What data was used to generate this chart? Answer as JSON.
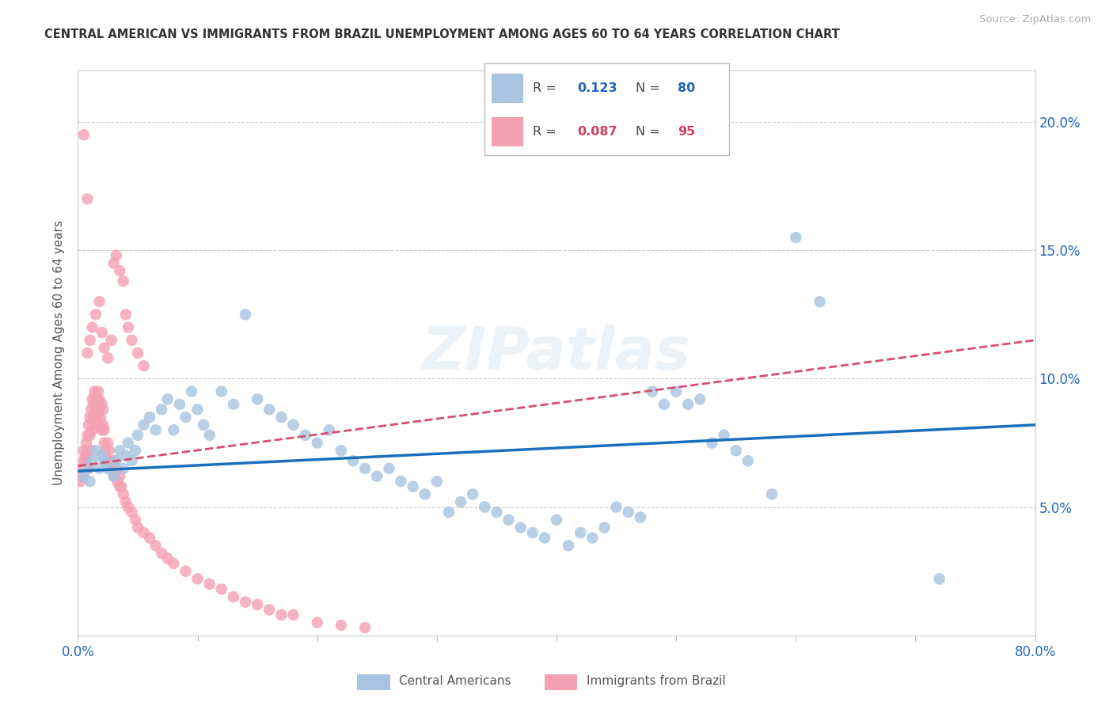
{
  "title": "CENTRAL AMERICAN VS IMMIGRANTS FROM BRAZIL UNEMPLOYMENT AMONG AGES 60 TO 64 YEARS CORRELATION CHART",
  "source": "Source: ZipAtlas.com",
  "ylabel": "Unemployment Among Ages 60 to 64 years",
  "xlim": [
    0.0,
    0.8
  ],
  "ylim": [
    0.0,
    0.22
  ],
  "x_ticks": [
    0.0,
    0.1,
    0.2,
    0.3,
    0.4,
    0.5,
    0.6,
    0.7,
    0.8
  ],
  "x_tick_labels": [
    "0.0%",
    "",
    "",
    "",
    "",
    "",
    "",
    "",
    "80.0%"
  ],
  "y_ticks": [
    0.0,
    0.05,
    0.1,
    0.15,
    0.2
  ],
  "y_tick_labels_right": [
    "",
    "5.0%",
    "10.0%",
    "15.0%",
    "20.0%"
  ],
  "legend_blue_r": "0.123",
  "legend_blue_n": "80",
  "legend_pink_r": "0.087",
  "legend_pink_n": "95",
  "blue_color": "#a8c4e0",
  "pink_color": "#f4a0b5",
  "trend_blue_color": "#1a6fbd",
  "trend_pink_color": "#d45070",
  "watermark": "ZIPatlas",
  "blue_trend_x0": 0.0,
  "blue_trend_y0": 0.064,
  "blue_trend_x1": 0.8,
  "blue_trend_y1": 0.082,
  "pink_trend_x0": 0.0,
  "pink_trend_y0": 0.066,
  "pink_trend_x1": 0.8,
  "pink_trend_y1": 0.115,
  "blue_scatter_x": [
    0.005,
    0.008,
    0.01,
    0.012,
    0.015,
    0.018,
    0.02,
    0.022,
    0.025,
    0.03,
    0.032,
    0.035,
    0.038,
    0.04,
    0.042,
    0.045,
    0.048,
    0.05,
    0.055,
    0.06,
    0.065,
    0.07,
    0.075,
    0.08,
    0.085,
    0.09,
    0.095,
    0.1,
    0.105,
    0.11,
    0.12,
    0.13,
    0.14,
    0.15,
    0.16,
    0.17,
    0.18,
    0.19,
    0.2,
    0.21,
    0.22,
    0.23,
    0.24,
    0.25,
    0.26,
    0.27,
    0.28,
    0.29,
    0.3,
    0.31,
    0.32,
    0.33,
    0.34,
    0.35,
    0.36,
    0.37,
    0.38,
    0.39,
    0.4,
    0.41,
    0.42,
    0.43,
    0.44,
    0.45,
    0.46,
    0.47,
    0.48,
    0.49,
    0.5,
    0.51,
    0.52,
    0.53,
    0.54,
    0.55,
    0.56,
    0.58,
    0.6,
    0.62,
    0.72
  ],
  "blue_scatter_y": [
    0.062,
    0.065,
    0.06,
    0.068,
    0.072,
    0.065,
    0.07,
    0.068,
    0.065,
    0.062,
    0.068,
    0.072,
    0.065,
    0.07,
    0.075,
    0.068,
    0.072,
    0.078,
    0.082,
    0.085,
    0.08,
    0.088,
    0.092,
    0.08,
    0.09,
    0.085,
    0.095,
    0.088,
    0.082,
    0.078,
    0.095,
    0.09,
    0.125,
    0.092,
    0.088,
    0.085,
    0.082,
    0.078,
    0.075,
    0.08,
    0.072,
    0.068,
    0.065,
    0.062,
    0.065,
    0.06,
    0.058,
    0.055,
    0.06,
    0.048,
    0.052,
    0.055,
    0.05,
    0.048,
    0.045,
    0.042,
    0.04,
    0.038,
    0.045,
    0.035,
    0.04,
    0.038,
    0.042,
    0.05,
    0.048,
    0.046,
    0.095,
    0.09,
    0.095,
    0.09,
    0.092,
    0.075,
    0.078,
    0.072,
    0.068,
    0.055,
    0.155,
    0.13,
    0.022
  ],
  "pink_scatter_x": [
    0.002,
    0.003,
    0.004,
    0.005,
    0.005,
    0.006,
    0.006,
    0.007,
    0.007,
    0.008,
    0.008,
    0.009,
    0.009,
    0.01,
    0.01,
    0.011,
    0.011,
    0.012,
    0.012,
    0.013,
    0.013,
    0.014,
    0.014,
    0.015,
    0.015,
    0.016,
    0.016,
    0.017,
    0.017,
    0.018,
    0.018,
    0.019,
    0.02,
    0.02,
    0.021,
    0.021,
    0.022,
    0.022,
    0.023,
    0.025,
    0.025,
    0.026,
    0.027,
    0.028,
    0.03,
    0.03,
    0.032,
    0.033,
    0.035,
    0.035,
    0.036,
    0.038,
    0.04,
    0.042,
    0.045,
    0.048,
    0.05,
    0.055,
    0.06,
    0.065,
    0.07,
    0.075,
    0.08,
    0.09,
    0.1,
    0.11,
    0.12,
    0.13,
    0.14,
    0.15,
    0.16,
    0.17,
    0.18,
    0.2,
    0.22,
    0.24,
    0.008,
    0.01,
    0.012,
    0.015,
    0.018,
    0.02,
    0.022,
    0.025,
    0.028,
    0.03,
    0.032,
    0.035,
    0.038,
    0.04,
    0.042,
    0.045,
    0.05,
    0.055,
    0.005,
    0.008
  ],
  "pink_scatter_y": [
    0.06,
    0.065,
    0.062,
    0.068,
    0.072,
    0.065,
    0.07,
    0.068,
    0.075,
    0.072,
    0.078,
    0.065,
    0.082,
    0.078,
    0.085,
    0.072,
    0.088,
    0.08,
    0.092,
    0.085,
    0.09,
    0.082,
    0.095,
    0.088,
    0.092,
    0.085,
    0.09,
    0.082,
    0.095,
    0.088,
    0.092,
    0.085,
    0.08,
    0.09,
    0.082,
    0.088,
    0.075,
    0.08,
    0.072,
    0.068,
    0.075,
    0.072,
    0.068,
    0.065,
    0.062,
    0.068,
    0.065,
    0.06,
    0.058,
    0.062,
    0.058,
    0.055,
    0.052,
    0.05,
    0.048,
    0.045,
    0.042,
    0.04,
    0.038,
    0.035,
    0.032,
    0.03,
    0.028,
    0.025,
    0.022,
    0.02,
    0.018,
    0.015,
    0.013,
    0.012,
    0.01,
    0.008,
    0.008,
    0.005,
    0.004,
    0.003,
    0.11,
    0.115,
    0.12,
    0.125,
    0.13,
    0.118,
    0.112,
    0.108,
    0.115,
    0.145,
    0.148,
    0.142,
    0.138,
    0.125,
    0.12,
    0.115,
    0.11,
    0.105,
    0.195,
    0.17
  ]
}
